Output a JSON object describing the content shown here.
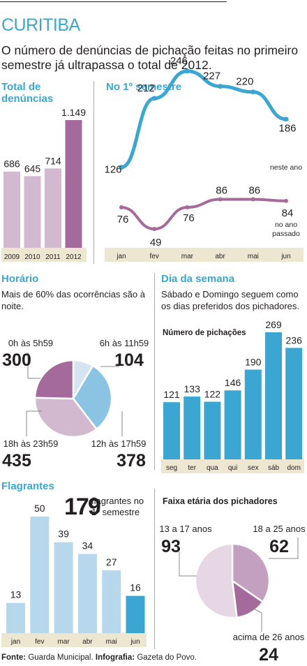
{
  "colors": {
    "accent": "#3ba6d1",
    "purple_dark": "#a56a9c",
    "purple_light": "#d3b9cf",
    "blue_light": "#b7d8ec",
    "axis_strip": "#ede6d1"
  },
  "header": {
    "city": "CURITIBA",
    "headline": "O número de denúncias de pichação feitas no primeiro semestre já ultrapassa o total de 2012."
  },
  "sections": {
    "total": "Total de denúncias",
    "semestre": "No 1º semestre",
    "horario": "Horário",
    "horario_note": "Mais de 60% das ocorrências são à noite.",
    "dia": "Dia da semana",
    "dia_note": "Sábado e Domingo seguem como os dias preferidos dos pichadores.",
    "flagrantes": "Flagrantes",
    "flagrantes_count": "179",
    "flagrantes_text": "flagrantes no 1º semestre",
    "faixa": "Faixa etária dos pichadores"
  },
  "footer": {
    "source_label": "Fonte:",
    "source": "Guarda Municipal.",
    "info_label": "Infografia:",
    "info": "Gazeta do Povo."
  },
  "chart_data": [
    {
      "id": "total",
      "type": "bar",
      "title": "Total de denúncias",
      "categories": [
        "2009",
        "2010",
        "2011",
        "2012"
      ],
      "values": [
        686,
        645,
        714,
        1149
      ],
      "value_labels": [
        "686",
        "645",
        "714",
        "1.149"
      ]
    },
    {
      "id": "semestre",
      "type": "line",
      "title": "No 1º semestre",
      "categories": [
        "jan",
        "fev",
        "mar",
        "abr",
        "mai",
        "jun"
      ],
      "series": [
        {
          "name": "neste ano",
          "values": [
            126,
            212,
            246,
            227,
            220,
            186
          ]
        },
        {
          "name": "no ano passado",
          "values": [
            76,
            49,
            76,
            86,
            86,
            84
          ]
        }
      ],
      "end_labels": [
        "neste ano",
        "no ano passado"
      ]
    },
    {
      "id": "horario",
      "type": "pie",
      "title": "Horário",
      "slices": [
        {
          "label": "6h às 11h59",
          "value": 104
        },
        {
          "label": "12h às 17h59",
          "value": 378
        },
        {
          "label": "18h às 23h59",
          "value": 435
        },
        {
          "label": "0h às 5h59",
          "value": 300
        }
      ]
    },
    {
      "id": "dia",
      "type": "bar",
      "title": "Dia da semana",
      "subtitle": "Número de pichações",
      "categories": [
        "seg",
        "ter",
        "qua",
        "qui",
        "sex",
        "sáb",
        "dom"
      ],
      "values": [
        121,
        133,
        122,
        146,
        190,
        269,
        236
      ]
    },
    {
      "id": "flagrantes",
      "type": "bar",
      "title": "Flagrantes",
      "categories": [
        "jan",
        "fev",
        "mar",
        "abr",
        "mai",
        "jun"
      ],
      "values": [
        13,
        50,
        39,
        34,
        27,
        16
      ]
    },
    {
      "id": "faixa",
      "type": "pie",
      "title": "Faixa etária dos pichadores",
      "slices": [
        {
          "label": "18 a 25 anos",
          "value": 62
        },
        {
          "label": "acima de 26 anos",
          "value": 24
        },
        {
          "label": "13 a 17 anos",
          "value": 93
        }
      ]
    }
  ]
}
